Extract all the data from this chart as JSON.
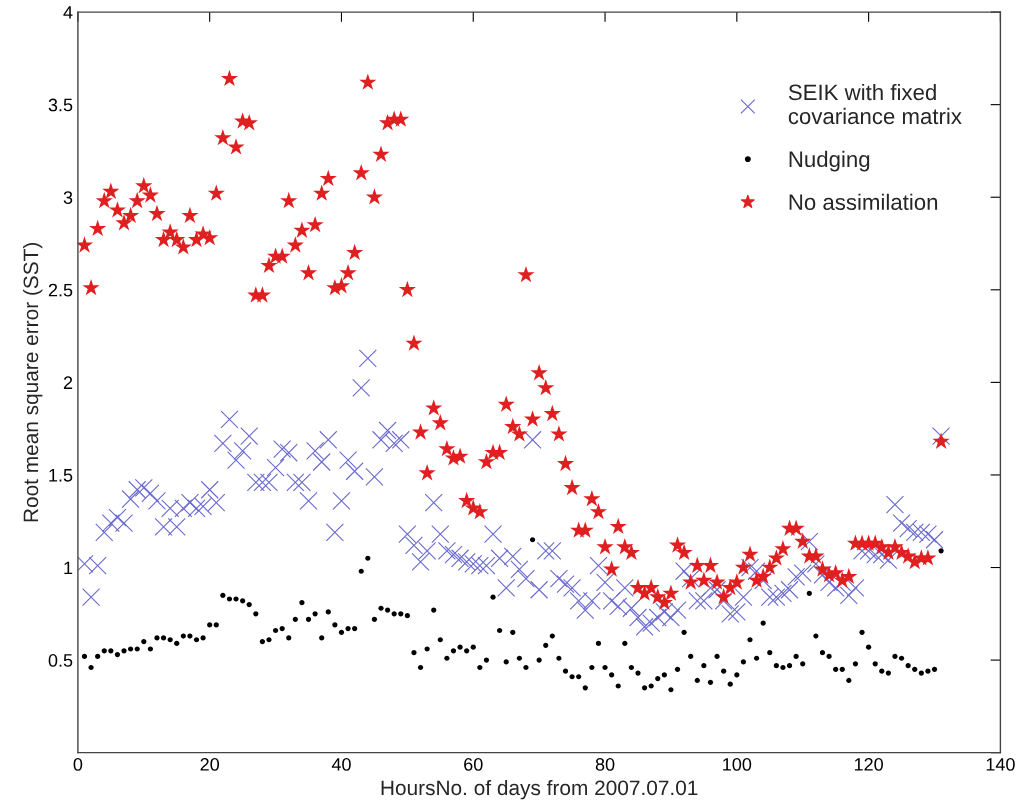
{
  "chart_data": {
    "type": "scatter",
    "xlabel": "HoursNo. of days from 2007.07.01",
    "ylabel": "Root mean square error (SST)",
    "x": [
      1,
      2,
      3,
      4,
      5,
      6,
      7,
      8,
      9,
      10,
      11,
      12,
      13,
      14,
      15,
      16,
      17,
      18,
      19,
      20,
      21,
      22,
      23,
      24,
      25,
      26,
      27,
      28,
      29,
      30,
      31,
      32,
      33,
      34,
      35,
      36,
      37,
      38,
      39,
      40,
      41,
      42,
      43,
      44,
      45,
      46,
      47,
      48,
      49,
      50,
      51,
      52,
      53,
      54,
      55,
      56,
      57,
      58,
      59,
      60,
      61,
      62,
      63,
      64,
      65,
      66,
      67,
      68,
      69,
      70,
      71,
      72,
      73,
      74,
      75,
      76,
      77,
      78,
      79,
      80,
      81,
      82,
      83,
      84,
      85,
      86,
      87,
      88,
      89,
      90,
      91,
      92,
      93,
      94,
      95,
      96,
      97,
      98,
      99,
      100,
      101,
      102,
      103,
      104,
      105,
      106,
      107,
      108,
      109,
      110,
      111,
      112,
      113,
      114,
      115,
      116,
      117,
      118,
      119,
      120,
      121,
      122,
      123,
      124,
      125,
      126,
      127,
      128,
      129,
      130,
      131
    ],
    "series": [
      {
        "name": "SEIK with fixed\ncovariance matrix",
        "color": "#6a6ad0",
        "marker": "cross",
        "values": [
          1.02,
          0.84,
          1.01,
          1.19,
          1.24,
          1.27,
          1.24,
          1.37,
          1.42,
          1.43,
          1.4,
          1.36,
          1.22,
          1.32,
          1.22,
          1.32,
          1.35,
          1.32,
          1.33,
          1.42,
          1.35,
          1.67,
          1.8,
          1.58,
          1.63,
          1.71,
          1.46,
          1.46,
          1.46,
          1.54,
          1.64,
          1.62,
          1.46,
          1.46,
          1.36,
          1.63,
          1.57,
          1.69,
          1.19,
          1.36,
          1.58,
          1.52,
          1.97,
          2.13,
          1.49,
          1.69,
          1.74,
          1.67,
          1.69,
          1.18,
          1.12,
          1.03,
          1.09,
          1.35,
          1.18,
          1.09,
          1.07,
          1.05,
          1.03,
          1.02,
          1.01,
          1.01,
          1.18,
          1.05,
          0.89,
          1.06,
          0.99,
          0.94,
          1.69,
          0.88,
          1.09,
          1.09,
          0.94,
          0.91,
          0.89,
          0.82,
          0.77,
          0.82,
          1.01,
          0.92,
          0.82,
          0.79,
          0.89,
          0.78,
          0.73,
          0.68,
          0.7,
          0.73,
          0.76,
          0.73,
          0.77,
          0.98,
          0.94,
          0.82,
          0.82,
          0.89,
          0.88,
          0.82,
          0.75,
          0.76,
          0.84,
          1.0,
          0.98,
          0.93,
          0.84,
          0.84,
          0.86,
          0.88,
          0.95,
          0.97,
          1.14,
          1.02,
          0.96,
          0.92,
          0.89,
          0.92,
          0.85,
          0.89,
          1.09,
          1.09,
          1.07,
          1.07,
          1.04,
          1.34,
          1.24,
          1.21,
          1.19,
          1.19,
          1.18,
          1.15,
          1.71
        ]
      },
      {
        "name": "Nudging",
        "color": "#000000",
        "marker": "circle",
        "values": [
          0.52,
          0.46,
          0.52,
          0.55,
          0.55,
          0.53,
          0.55,
          0.56,
          0.56,
          0.6,
          0.56,
          0.62,
          0.62,
          0.61,
          0.59,
          0.63,
          0.63,
          0.61,
          0.62,
          0.69,
          0.69,
          0.85,
          0.83,
          0.83,
          0.82,
          0.8,
          0.75,
          0.6,
          0.61,
          0.66,
          0.67,
          0.62,
          0.72,
          0.81,
          0.72,
          0.75,
          0.62,
          0.76,
          0.69,
          0.65,
          0.67,
          0.67,
          0.98,
          1.05,
          0.72,
          0.78,
          0.77,
          0.75,
          0.75,
          0.74,
          0.54,
          0.46,
          0.56,
          0.77,
          0.61,
          0.51,
          0.55,
          0.57,
          0.55,
          0.57,
          0.46,
          0.5,
          0.84,
          0.66,
          0.49,
          0.65,
          0.51,
          0.46,
          1.15,
          0.5,
          0.58,
          0.63,
          0.51,
          0.44,
          0.41,
          0.41,
          0.35,
          0.46,
          0.59,
          0.46,
          0.42,
          0.36,
          0.59,
          0.46,
          0.43,
          0.35,
          0.36,
          0.4,
          0.42,
          0.34,
          0.45,
          0.65,
          0.52,
          0.39,
          0.47,
          0.38,
          0.52,
          0.44,
          0.37,
          0.42,
          0.49,
          0.61,
          0.51,
          0.7,
          0.54,
          0.47,
          0.46,
          0.47,
          0.52,
          0.48,
          0.86,
          0.63,
          0.54,
          0.52,
          0.45,
          0.45,
          0.39,
          0.48,
          0.65,
          0.57,
          0.48,
          0.44,
          0.43,
          0.52,
          0.51,
          0.47,
          0.45,
          0.43,
          0.44,
          0.45,
          1.09
        ]
      },
      {
        "name": "No assimilation",
        "color": "#e02020",
        "marker": "star",
        "x": [
          1,
          2,
          3,
          4,
          5,
          6,
          7,
          8,
          9,
          10,
          11,
          12,
          13,
          14,
          15,
          16,
          17,
          18,
          19,
          20,
          21,
          22,
          23,
          24,
          25,
          26,
          27,
          28,
          29,
          30,
          31,
          32,
          33,
          34,
          35,
          36,
          37,
          38,
          39,
          40,
          41,
          42,
          43,
          44,
          45,
          46,
          47,
          48,
          49,
          50,
          51,
          52,
          53,
          54,
          55,
          56,
          57,
          58,
          59,
          60,
          61,
          62,
          63,
          64,
          65,
          66,
          67,
          68,
          69,
          70,
          71,
          72,
          73,
          74,
          75,
          76,
          77,
          78,
          79,
          80,
          81,
          82,
          83,
          84,
          85,
          86,
          87,
          88,
          89,
          90,
          91,
          92,
          93,
          94,
          95,
          96,
          97,
          98,
          99,
          100,
          101,
          102,
          103,
          104,
          105,
          106,
          107,
          108,
          109,
          110,
          111,
          112,
          113,
          114,
          115,
          116,
          117,
          118,
          119,
          120,
          121,
          122,
          123,
          124,
          125,
          126,
          127,
          128,
          129,
          131
        ],
        "values": [
          2.74,
          2.51,
          2.83,
          2.98,
          3.03,
          2.93,
          2.86,
          2.9,
          2.98,
          3.06,
          3.01,
          2.91,
          2.77,
          2.81,
          2.77,
          2.73,
          2.9,
          2.77,
          2.8,
          2.78,
          3.02,
          3.32,
          3.64,
          3.27,
          3.41,
          3.4,
          2.47,
          2.47,
          2.63,
          2.68,
          2.68,
          2.98,
          2.74,
          2.82,
          2.59,
          2.85,
          3.02,
          3.1,
          2.51,
          2.52,
          2.59,
          2.7,
          3.13,
          3.62,
          3.0,
          3.23,
          3.4,
          3.42,
          3.42,
          2.5,
          2.21,
          1.73,
          1.51,
          1.86,
          1.78,
          1.64,
          1.59,
          1.6,
          1.36,
          1.32,
          1.3,
          1.57,
          1.62,
          1.62,
          1.88,
          1.76,
          1.72,
          2.58,
          1.8,
          2.05,
          1.97,
          1.83,
          1.72,
          1.56,
          1.43,
          1.2,
          1.2,
          1.37,
          1.3,
          1.11,
          0.99,
          1.22,
          1.11,
          1.08,
          0.89,
          0.86,
          0.89,
          0.84,
          0.81,
          0.86,
          1.12,
          1.08,
          0.92,
          1.01,
          0.93,
          1.01,
          0.92,
          0.84,
          0.89,
          0.92,
          1.0,
          1.07,
          0.93,
          0.95,
          1.0,
          1.05,
          1.1,
          1.21,
          1.21,
          1.14,
          1.06,
          1.06,
          0.99,
          0.96,
          0.97,
          0.93,
          0.95,
          1.13,
          1.13,
          1.13,
          1.13,
          1.11,
          1.08,
          1.11,
          1.08,
          1.06,
          1.03,
          1.05,
          1.05,
          1.68
        ]
      }
    ],
    "xlim": [
      0,
      140
    ],
    "xticks": [
      0,
      20,
      40,
      60,
      80,
      100,
      120,
      140
    ],
    "ylim": [
      0,
      4
    ],
    "yticks": [
      {
        "value": 0,
        "label": null
      },
      0.5,
      1,
      1.5,
      2,
      2.5,
      3,
      3.5,
      4
    ],
    "grid": false,
    "legend": "top right"
  }
}
